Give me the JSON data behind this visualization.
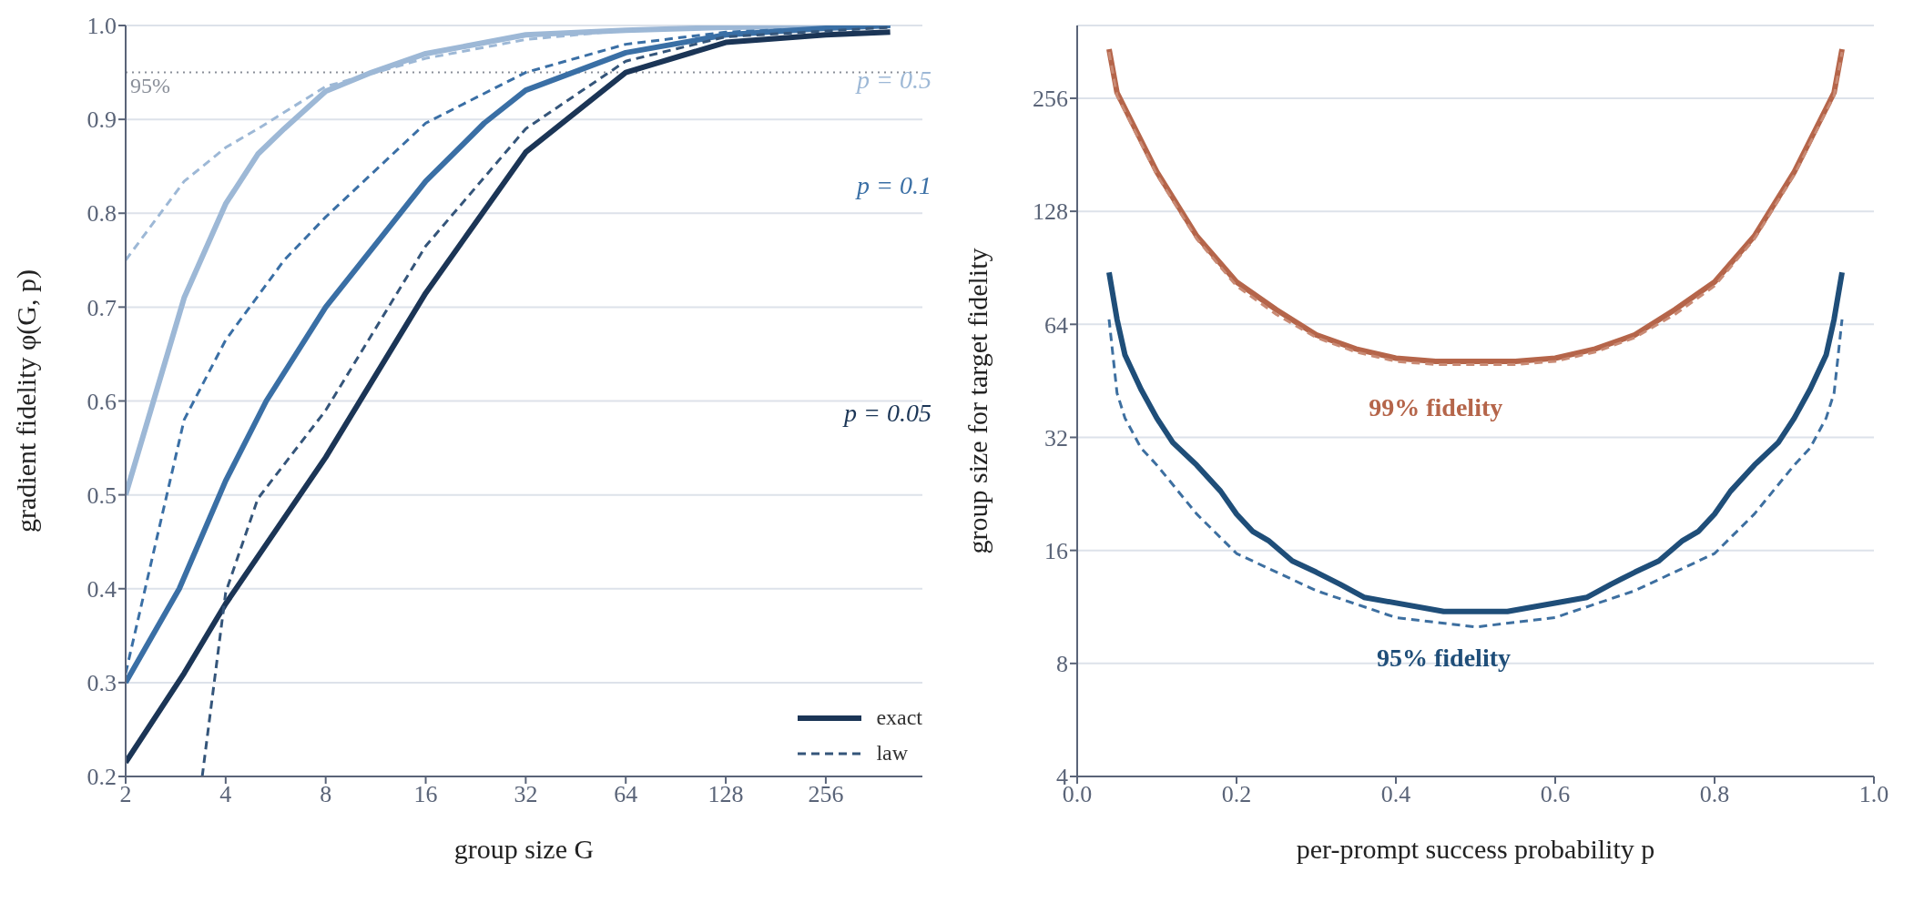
{
  "chart_data": [
    {
      "type": "line",
      "xlabel": "group size  G",
      "ylabel": "gradient fidelity  φ(G, p)",
      "log": "x",
      "xlim": [
        2,
        500
      ],
      "xticks": [
        2,
        4,
        8,
        16,
        32,
        64,
        128,
        256
      ],
      "ylim": [
        0.2,
        1.0
      ],
      "yticks": [
        0.2,
        0.3,
        0.4,
        0.5,
        0.6,
        0.7,
        0.8,
        0.9,
        {
          "value": 1,
          "label": "1.0"
        }
      ],
      "grid": "y",
      "legend": "bottom right",
      "marker": "none",
      "ref_lines": [
        {
          "axis": "y",
          "value": 0.95,
          "label": "95%",
          "color": "#8a8f99",
          "line_style": "dotted"
        }
      ],
      "annotations": [
        "p = 0.5",
        "p = 0.1",
        "p = 0.05"
      ],
      "series": [
        {
          "color": "#9db8d6",
          "line_style": "solid",
          "x": [
            2,
            3,
            4,
            5,
            6,
            8,
            11,
            16,
            32,
            64,
            128,
            400
          ],
          "values": [
            0.5,
            0.71,
            0.81,
            0.863,
            0.89,
            0.93,
            0.95,
            0.97,
            0.99,
            0.995,
            0.998,
            1.0
          ]
        },
        {
          "color": "#9db8d6",
          "line_style": "dashed",
          "x": [
            2,
            3,
            4,
            5,
            8,
            16,
            32,
            64,
            400
          ],
          "values": [
            0.75,
            0.834,
            0.87,
            0.89,
            0.935,
            0.965,
            0.985,
            0.995,
            1.0
          ]
        },
        {
          "color": "#3a6fa5",
          "line_style": "solid",
          "x": [
            2,
            2.9,
            4,
            5.3,
            8,
            16,
            24,
            32,
            64,
            128,
            256,
            400
          ],
          "values": [
            0.3,
            0.4,
            0.515,
            0.6,
            0.7,
            0.834,
            0.896,
            0.931,
            0.971,
            0.99,
            0.997,
            1.0
          ]
        },
        {
          "color": "#3a6fa5",
          "line_style": "dashed",
          "x": [
            2,
            3,
            4,
            6,
            8,
            16,
            32,
            64,
            128,
            400
          ],
          "values": [
            0.31,
            0.58,
            0.665,
            0.75,
            0.796,
            0.896,
            0.95,
            0.98,
            0.993,
            1.0
          ]
        },
        {
          "name": "exact",
          "color": "#1b3556",
          "line_style": "solid",
          "x": [
            2,
            3,
            4,
            8,
            16,
            32,
            64,
            128,
            256,
            400
          ],
          "values": [
            0.215,
            0.31,
            0.384,
            0.54,
            0.715,
            0.865,
            0.95,
            0.982,
            0.99,
            0.993
          ]
        },
        {
          "name": "law",
          "color": "#34557a",
          "line_style": "dashed",
          "x": [
            3.4,
            4,
            5,
            8,
            16,
            32,
            64,
            128,
            400
          ],
          "values": [
            0.2,
            0.396,
            0.496,
            0.59,
            0.765,
            0.89,
            0.962,
            0.988,
            0.998
          ]
        }
      ]
    },
    {
      "type": "line",
      "xlabel": "per-prompt success probability  p",
      "ylabel": "group size for target fidelity",
      "log": "y",
      "xlim": [
        0,
        1
      ],
      "xticks": [
        {
          "value": 0,
          "label": "0.0"
        },
        0.2,
        0.4,
        0.6,
        0.8,
        {
          "value": 1,
          "label": "1.0"
        }
      ],
      "ylim": [
        4,
        400
      ],
      "yticks": [
        4,
        8,
        16,
        32,
        64,
        128,
        256
      ],
      "grid": "y",
      "marker": "none",
      "series": [
        {
          "name": "99% fidelity",
          "color": "#b5654a",
          "line_style": "solid",
          "x": [
            0.04,
            0.05,
            0.1,
            0.15,
            0.2,
            0.25,
            0.3,
            0.35,
            0.4,
            0.45,
            0.5,
            0.55,
            0.6,
            0.65,
            0.7,
            0.75,
            0.8,
            0.85,
            0.9,
            0.95,
            0.96
          ],
          "values": [
            346,
            265,
            163,
            110,
            83,
            70,
            60,
            55,
            52,
            51,
            51,
            51,
            52,
            55,
            60,
            70,
            83,
            110,
            163,
            265,
            346
          ]
        },
        {
          "color": "#c98a74",
          "line_style": "dashed",
          "x": [
            0.04,
            0.05,
            0.1,
            0.15,
            0.2,
            0.25,
            0.3,
            0.35,
            0.4,
            0.45,
            0.5,
            0.55,
            0.6,
            0.65,
            0.7,
            0.75,
            0.8,
            0.85,
            0.9,
            0.95,
            0.96
          ],
          "values": [
            340,
            260,
            160,
            108,
            81,
            68,
            59,
            54,
            51,
            50,
            50,
            50,
            51,
            54,
            59,
            68,
            81,
            108,
            160,
            260,
            340
          ]
        },
        {
          "name": "95% fidelity",
          "color": "#1f4e79",
          "line_style": "solid",
          "x": [
            0.04,
            0.05,
            0.06,
            0.08,
            0.1,
            0.12,
            0.15,
            0.18,
            0.2,
            0.22,
            0.24,
            0.27,
            0.3,
            0.33,
            0.36,
            0.46,
            0.54,
            0.64,
            0.67,
            0.7,
            0.73,
            0.76,
            0.78,
            0.8,
            0.82,
            0.85,
            0.88,
            0.9,
            0.92,
            0.94,
            0.95,
            0.96
          ],
          "values": [
            88,
            66,
            53,
            43,
            36,
            31,
            27,
            23,
            20,
            18,
            17,
            15,
            14,
            13,
            12,
            11,
            11,
            12,
            13,
            14,
            15,
            17,
            18,
            20,
            23,
            27,
            31,
            36,
            43,
            53,
            66,
            88
          ]
        },
        {
          "color": "#3d6fa0",
          "line_style": "dashed",
          "x": [
            0.04,
            0.05,
            0.06,
            0.08,
            0.1,
            0.15,
            0.2,
            0.3,
            0.4,
            0.5,
            0.6,
            0.7,
            0.8,
            0.85,
            0.9,
            0.92,
            0.94,
            0.95,
            0.96
          ],
          "values": [
            66,
            42,
            36,
            30,
            27,
            20,
            15.7,
            12.5,
            10.6,
            10,
            10.6,
            12.5,
            15.7,
            20,
            27,
            30,
            36,
            42,
            66
          ]
        }
      ]
    }
  ]
}
